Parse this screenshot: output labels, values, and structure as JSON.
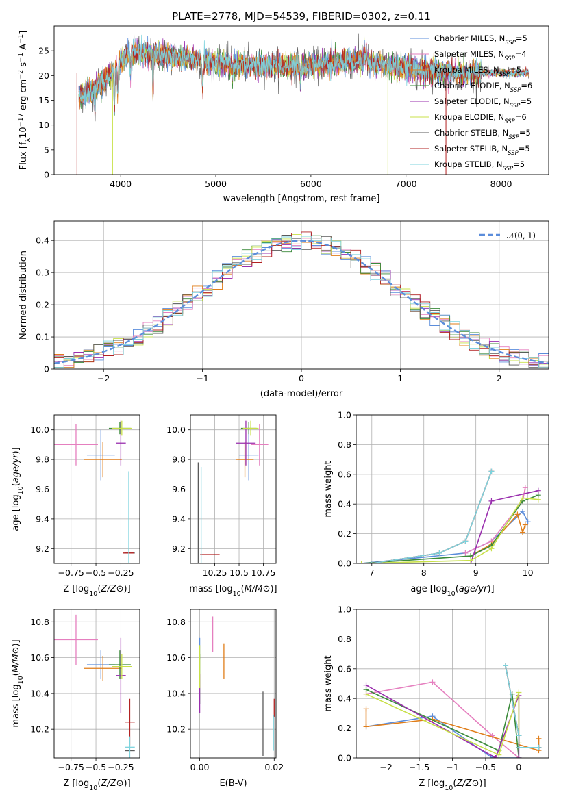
{
  "figure": {
    "title": "PLATE=2778, MJD=54539, FIBERID=0302, z=0.11"
  },
  "colors": {
    "Chabrier MILES": "#5b8ddb",
    "Salpeter MILES": "#e57fbf",
    "Kroupa MILES": "#e07e1a",
    "Chabrier ELODIE": "#3a8a3a",
    "Salpeter ELODIE": "#9a2fae",
    "Kroupa ELODIE": "#c8e048",
    "Chabrier STELIB": "#5a5a5a",
    "Salpeter STELIB": "#b22222",
    "Kroupa STELIB": "#7dd3dd"
  },
  "chart_data": [
    {
      "id": "spectrum",
      "type": "line",
      "xlabel": "wavelength [Angstrom, rest frame]",
      "ylabel": "Flux [f_λ10^-17 erg cm^-2 s^-1 A^-1]",
      "xlim": [
        3300,
        8500
      ],
      "ylim": [
        0,
        30
      ],
      "xticks": [
        4000,
        5000,
        6000,
        7000,
        8000
      ],
      "yticks": [
        0,
        5,
        10,
        15,
        20,
        25
      ],
      "grid": false,
      "legend": "right",
      "data_range": [
        3560,
        8290
      ],
      "continuum": [
        [
          3560,
          15.5
        ],
        [
          3700,
          17
        ],
        [
          3900,
          20
        ],
        [
          4000,
          23
        ],
        [
          4100,
          24.5
        ],
        [
          4500,
          24
        ],
        [
          5000,
          22.5
        ],
        [
          5500,
          22
        ],
        [
          6000,
          22
        ],
        [
          6500,
          23
        ],
        [
          7000,
          21.5
        ],
        [
          7500,
          20.5
        ],
        [
          8000,
          20.5
        ],
        [
          8290,
          20.5
        ]
      ],
      "series": [
        {
          "name": "Chabrier MILES, N_SSP=5",
          "label_main": "Chabrier MILES, N",
          "label_sub": "SSP",
          "label_tail": "=5"
        },
        {
          "name": "Salpeter MILES, N_SSP=4",
          "label_main": "Salpeter MILES, N",
          "label_sub": "SSP",
          "label_tail": "=4"
        },
        {
          "name": "Kroupa MILES, N_SSP=5",
          "label_main": "Kroupa MILES, N",
          "label_sub": "SSP",
          "label_tail": "=5"
        },
        {
          "name": "Chabrier ELODIE, N_SSP=6",
          "label_main": "Chabrier ELODIE, N",
          "label_sub": "SSP",
          "label_tail": "=6"
        },
        {
          "name": "Salpeter ELODIE, N_SSP=5",
          "label_main": "Salpeter ELODIE, N",
          "label_sub": "SSP",
          "label_tail": "=5"
        },
        {
          "name": "Kroupa ELODIE, N_SSP=6",
          "label_main": "Kroupa ELODIE, N",
          "label_sub": "SSP",
          "label_tail": "=6"
        },
        {
          "name": "Chabrier STELIB, N_SSP=5",
          "label_main": "Chabrier STELIB, N",
          "label_sub": "SSP",
          "label_tail": "=5"
        },
        {
          "name": "Salpeter STELIB, N_SSP=5",
          "label_main": "Salpeter STELIB, N",
          "label_sub": "SSP",
          "label_tail": "=5"
        },
        {
          "name": "Kroupa STELIB, N_SSP=5",
          "label_main": "Kroupa STELIB, N",
          "label_sub": "SSP",
          "label_tail": "=5"
        }
      ]
    },
    {
      "id": "residuals",
      "type": "line",
      "xlabel": "(data-model)/error",
      "ylabel": "Normed distribution",
      "xlim": [
        -2.5,
        2.5
      ],
      "ylim": [
        0,
        0.46
      ],
      "xticks": [
        -2,
        -1,
        0,
        1,
        2
      ],
      "yticks": [
        0.0,
        0.1,
        0.2,
        0.3,
        0.4
      ],
      "grid": true,
      "legend": "top-right",
      "normal_label": "𝒩(0, 1)",
      "hist_bins": [
        -2.5,
        2.5,
        0.1
      ]
    },
    {
      "id": "age_vs_Z",
      "type": "scatter",
      "xlabel": "Z [log10(Z/Z⊙)]",
      "ylabel": "age [log10(age/yr)]",
      "xlim": [
        -0.92,
        -0.06
      ],
      "ylim": [
        9.1,
        10.1
      ],
      "xticks": [
        -0.75,
        -0.5,
        -0.25
      ],
      "yticks": [
        9.2,
        9.4,
        9.6,
        9.8,
        10.0
      ],
      "grid": true,
      "points": [
        {
          "key": "Chabrier MILES",
          "x": -0.45,
          "y": 9.83,
          "xerr": 0.14,
          "yerr": 0.17
        },
        {
          "key": "Salpeter MILES",
          "x": -0.7,
          "y": 9.9,
          "xerr": 0.22,
          "yerr": 0.14
        },
        {
          "key": "Kroupa MILES",
          "x": -0.43,
          "y": 9.8,
          "xerr": 0.19,
          "yerr": 0.12
        },
        {
          "key": "Chabrier ELODIE",
          "x": -0.26,
          "y": 10.01,
          "xerr": 0.11,
          "yerr": 0.04
        },
        {
          "key": "Salpeter ELODIE",
          "x": -0.25,
          "y": 9.91,
          "xerr": 0.05,
          "yerr": 0.15
        },
        {
          "key": "Kroupa ELODIE",
          "x": -0.24,
          "y": 10.01,
          "xerr": 0.1,
          "yerr": 0.05
        },
        {
          "key": "Chabrier STELIB",
          "x": -0.16,
          "y": 9.17,
          "xerr": 0.05,
          "yerr": 0.0
        },
        {
          "key": "Salpeter STELIB",
          "x": -0.17,
          "y": 9.17,
          "xerr": 0.0,
          "yerr": 0.0
        },
        {
          "key": "Kroupa STELIB",
          "x": -0.17,
          "y": 9.4,
          "xerr": 0.0,
          "yerr": 0.32
        }
      ]
    },
    {
      "id": "age_vs_mass",
      "type": "scatter",
      "xlabel": "mass [log10(M/M⊙)]",
      "ylabel": "",
      "xlim": [
        10.0,
        10.88
      ],
      "ylim": [
        9.1,
        10.1
      ],
      "xticks": [
        10.25,
        10.5,
        10.75
      ],
      "yticks": [
        9.2,
        9.4,
        9.6,
        9.8,
        10.0
      ],
      "grid": true,
      "points": [
        {
          "key": "Chabrier MILES",
          "x": 10.6,
          "y": 9.83,
          "xerr": 0.1,
          "yerr": 0.17
        },
        {
          "key": "Salpeter MILES",
          "x": 10.71,
          "y": 9.9,
          "xerr": 0.09,
          "yerr": 0.14
        },
        {
          "key": "Kroupa MILES",
          "x": 10.56,
          "y": 9.8,
          "xerr": 0.09,
          "yerr": 0.12
        },
        {
          "key": "Chabrier ELODIE",
          "x": 10.6,
          "y": 10.01,
          "xerr": 0.08,
          "yerr": 0.04
        },
        {
          "key": "Salpeter ELODIE",
          "x": 10.57,
          "y": 9.91,
          "xerr": 0.1,
          "yerr": 0.15
        },
        {
          "key": "Kroupa ELODIE",
          "x": 10.62,
          "y": 10.01,
          "xerr": 0.08,
          "yerr": 0.05
        },
        {
          "key": "Chabrier STELIB",
          "x": 10.08,
          "y": 9.17,
          "xerr": 0.0,
          "yerr": 0.61
        },
        {
          "key": "Salpeter STELIB",
          "x": 10.2,
          "y": 9.16,
          "xerr": 0.1,
          "yerr": 0.0
        },
        {
          "key": "Kroupa STELIB",
          "x": 10.11,
          "y": 9.17,
          "xerr": 0.0,
          "yerr": 0.58
        }
      ]
    },
    {
      "id": "massweight_vs_age",
      "type": "line",
      "xlabel": "age [log10(age/yr)]",
      "ylabel": "mass weight",
      "xlim": [
        6.7,
        10.4
      ],
      "ylim": [
        0,
        1.0
      ],
      "xticks": [
        7,
        8,
        9,
        10
      ],
      "yticks": [
        0.0,
        0.2,
        0.4,
        0.6,
        0.8,
        1.0
      ],
      "grid": true,
      "series": [
        {
          "key": "Chabrier MILES",
          "x": [
            6.8,
            8.8,
            9.3,
            9.9,
            10.0
          ],
          "y": [
            0.0,
            0.07,
            0.15,
            0.35,
            0.28
          ]
        },
        {
          "key": "Salpeter MILES",
          "x": [
            8.8,
            9.3,
            9.9,
            9.95
          ],
          "y": [
            0.07,
            0.15,
            0.42,
            0.51
          ]
        },
        {
          "key": "Kroupa MILES",
          "x": [
            8.9,
            9.3,
            9.8,
            9.9,
            9.95
          ],
          "y": [
            0.05,
            0.13,
            0.33,
            0.21,
            0.26
          ]
        },
        {
          "key": "Chabrier ELODIE",
          "x": [
            6.8,
            8.9,
            9.3,
            9.9,
            10.2
          ],
          "y": [
            0.0,
            0.05,
            0.12,
            0.42,
            0.46
          ]
        },
        {
          "key": "Salpeter ELODIE",
          "x": [
            8.9,
            9.3,
            10.2
          ],
          "y": [
            0.0,
            0.42,
            0.49
          ]
        },
        {
          "key": "Kroupa ELODIE",
          "x": [
            6.8,
            8.9,
            9.3,
            9.9,
            10.2
          ],
          "y": [
            0.0,
            0.02,
            0.1,
            0.44,
            0.43
          ]
        },
        {
          "key": "Chabrier STELIB",
          "x": [
            7.0,
            8.3,
            8.8,
            9.3
          ],
          "y": [
            0.0,
            0.07,
            0.15,
            0.62
          ]
        },
        {
          "key": "Salpeter STELIB",
          "x": [
            7.0,
            8.3,
            8.8,
            9.3
          ],
          "y": [
            0.0,
            0.07,
            0.15,
            0.62
          ]
        },
        {
          "key": "Kroupa STELIB",
          "x": [
            7.0,
            8.3,
            8.8,
            9.3
          ],
          "y": [
            0.0,
            0.07,
            0.15,
            0.62
          ]
        }
      ]
    },
    {
      "id": "mass_vs_Z",
      "type": "scatter",
      "xlabel": "Z [log10(Z/Z⊙)]",
      "ylabel": "mass [log10(M/M⊙)]",
      "xlim": [
        -0.92,
        -0.06
      ],
      "ylim": [
        10.04,
        10.87
      ],
      "xticks": [
        -0.75,
        -0.5,
        -0.25
      ],
      "yticks": [
        10.2,
        10.4,
        10.6,
        10.8
      ],
      "grid": true,
      "points": [
        {
          "key": "Chabrier MILES",
          "x": -0.45,
          "y": 10.56,
          "xerr": 0.14,
          "yerr": 0.08
        },
        {
          "key": "Salpeter MILES",
          "x": -0.7,
          "y": 10.7,
          "xerr": 0.22,
          "yerr": 0.14
        },
        {
          "key": "Kroupa MILES",
          "x": -0.43,
          "y": 10.54,
          "xerr": 0.19,
          "yerr": 0.07
        },
        {
          "key": "Chabrier ELODIE",
          "x": -0.26,
          "y": 10.56,
          "xerr": 0.11,
          "yerr": 0.08
        },
        {
          "key": "Salpeter ELODIE",
          "x": -0.25,
          "y": 10.5,
          "xerr": 0.05,
          "yerr": 0.21
        },
        {
          "key": "Kroupa ELODIE",
          "x": -0.24,
          "y": 10.55,
          "xerr": 0.1,
          "yerr": 0.07
        },
        {
          "key": "Chabrier STELIB",
          "x": -0.16,
          "y": 10.08,
          "xerr": 0.05,
          "yerr": 0.0
        },
        {
          "key": "Salpeter STELIB",
          "x": -0.16,
          "y": 10.24,
          "xerr": 0.05,
          "yerr": 0.13
        },
        {
          "key": "Kroupa STELIB",
          "x": -0.16,
          "y": 10.1,
          "xerr": 0.05,
          "yerr": 0.06
        }
      ]
    },
    {
      "id": "mass_vs_ebv",
      "type": "scatter",
      "xlabel": "E(B-V)",
      "ylabel": "",
      "xlim": [
        -0.0025,
        0.0205
      ],
      "ylim": [
        10.04,
        10.87
      ],
      "xticks": [
        0.0,
        0.02
      ],
      "xticklabels": [
        "0.00",
        "0.02"
      ],
      "yticks": [
        10.2,
        10.4,
        10.6,
        10.8
      ],
      "grid": true,
      "points": [
        {
          "key": "Chabrier MILES",
          "x": 0.0,
          "y": 10.65,
          "xerr": 0.0,
          "yerr": 0.06
        },
        {
          "key": "Salpeter MILES",
          "x": 0.0035,
          "y": 10.73,
          "xerr": 0.0,
          "yerr": 0.1
        },
        {
          "key": "Kroupa MILES",
          "x": 0.0065,
          "y": 10.58,
          "xerr": 0.0,
          "yerr": 0.1
        },
        {
          "key": "Chabrier ELODIE",
          "x": 0.0,
          "y": 10.48,
          "xerr": 0.0,
          "yerr": 0.14
        },
        {
          "key": "Salpeter ELODIE",
          "x": 0.0,
          "y": 10.4,
          "xerr": 0.0,
          "yerr": 0.11
        },
        {
          "key": "Kroupa ELODIE",
          "x": 0.0,
          "y": 10.55,
          "xerr": 0.0,
          "yerr": 0.12
        },
        {
          "key": "Chabrier STELIB",
          "x": 0.017,
          "y": 10.23,
          "xerr": 0.0,
          "yerr": 0.18
        },
        {
          "key": "Salpeter STELIB",
          "x": 0.02,
          "y": 10.32,
          "xerr": 0.0,
          "yerr": 0.05
        },
        {
          "key": "Kroupa STELIB",
          "x": 0.0198,
          "y": 10.18,
          "xerr": 0.0,
          "yerr": 0.1
        }
      ]
    },
    {
      "id": "massweight_vs_Z",
      "type": "line",
      "xlabel": "Z [log10(Z/Z⊙)]",
      "ylabel": "mass weight",
      "xlim": [
        -2.45,
        0.45
      ],
      "ylim": [
        0,
        1.0
      ],
      "xticks": [
        -2.0,
        -1.5,
        -1.0,
        -0.5,
        0.0
      ],
      "yticks": [
        0.0,
        0.2,
        0.4,
        0.6,
        0.8,
        1.0
      ],
      "grid": true,
      "series": [
        {
          "key": "Chabrier MILES",
          "x": [
            -2.3,
            -1.3,
            -0.4,
            0.0
          ],
          "y": [
            0.21,
            0.28,
            0.0,
            0.0
          ]
        },
        {
          "key": "Salpeter MILES",
          "x": [
            -2.3,
            -1.3,
            -0.4,
            0.0
          ],
          "y": [
            0.43,
            0.51,
            0.15,
            0.0
          ]
        },
        {
          "key": "Kroupa MILES",
          "x": [
            -2.3,
            -2.3,
            -1.3,
            0.3,
            0.3
          ],
          "y": [
            0.33,
            0.21,
            0.26,
            0.05,
            0.13
          ]
        },
        {
          "key": "Chabrier ELODIE",
          "x": [
            -2.3,
            -0.3,
            -0.1,
            0.0
          ],
          "y": [
            0.46,
            0.05,
            0.43,
            0.0
          ]
        },
        {
          "key": "Salpeter ELODIE",
          "x": [
            -2.3,
            -0.35,
            0.0,
            0.0
          ],
          "y": [
            0.49,
            0.0,
            0.42,
            0.0
          ]
        },
        {
          "key": "Kroupa ELODIE",
          "x": [
            -2.3,
            -0.3,
            0.0,
            0.0
          ],
          "y": [
            0.43,
            0.02,
            0.44,
            0.1
          ]
        },
        {
          "key": "Chabrier STELIB",
          "x": [
            -0.2,
            0.0,
            0.0,
            0.3
          ],
          "y": [
            0.62,
            0.15,
            0.07,
            0.07
          ]
        },
        {
          "key": "Salpeter STELIB",
          "x": [
            -0.2,
            0.0,
            0.0,
            0.3
          ],
          "y": [
            0.62,
            0.15,
            0.07,
            0.07
          ]
        },
        {
          "key": "Kroupa STELIB",
          "x": [
            -0.2,
            0.0,
            0.0,
            0.3
          ],
          "y": [
            0.62,
            0.15,
            0.07,
            0.07
          ]
        }
      ]
    }
  ]
}
